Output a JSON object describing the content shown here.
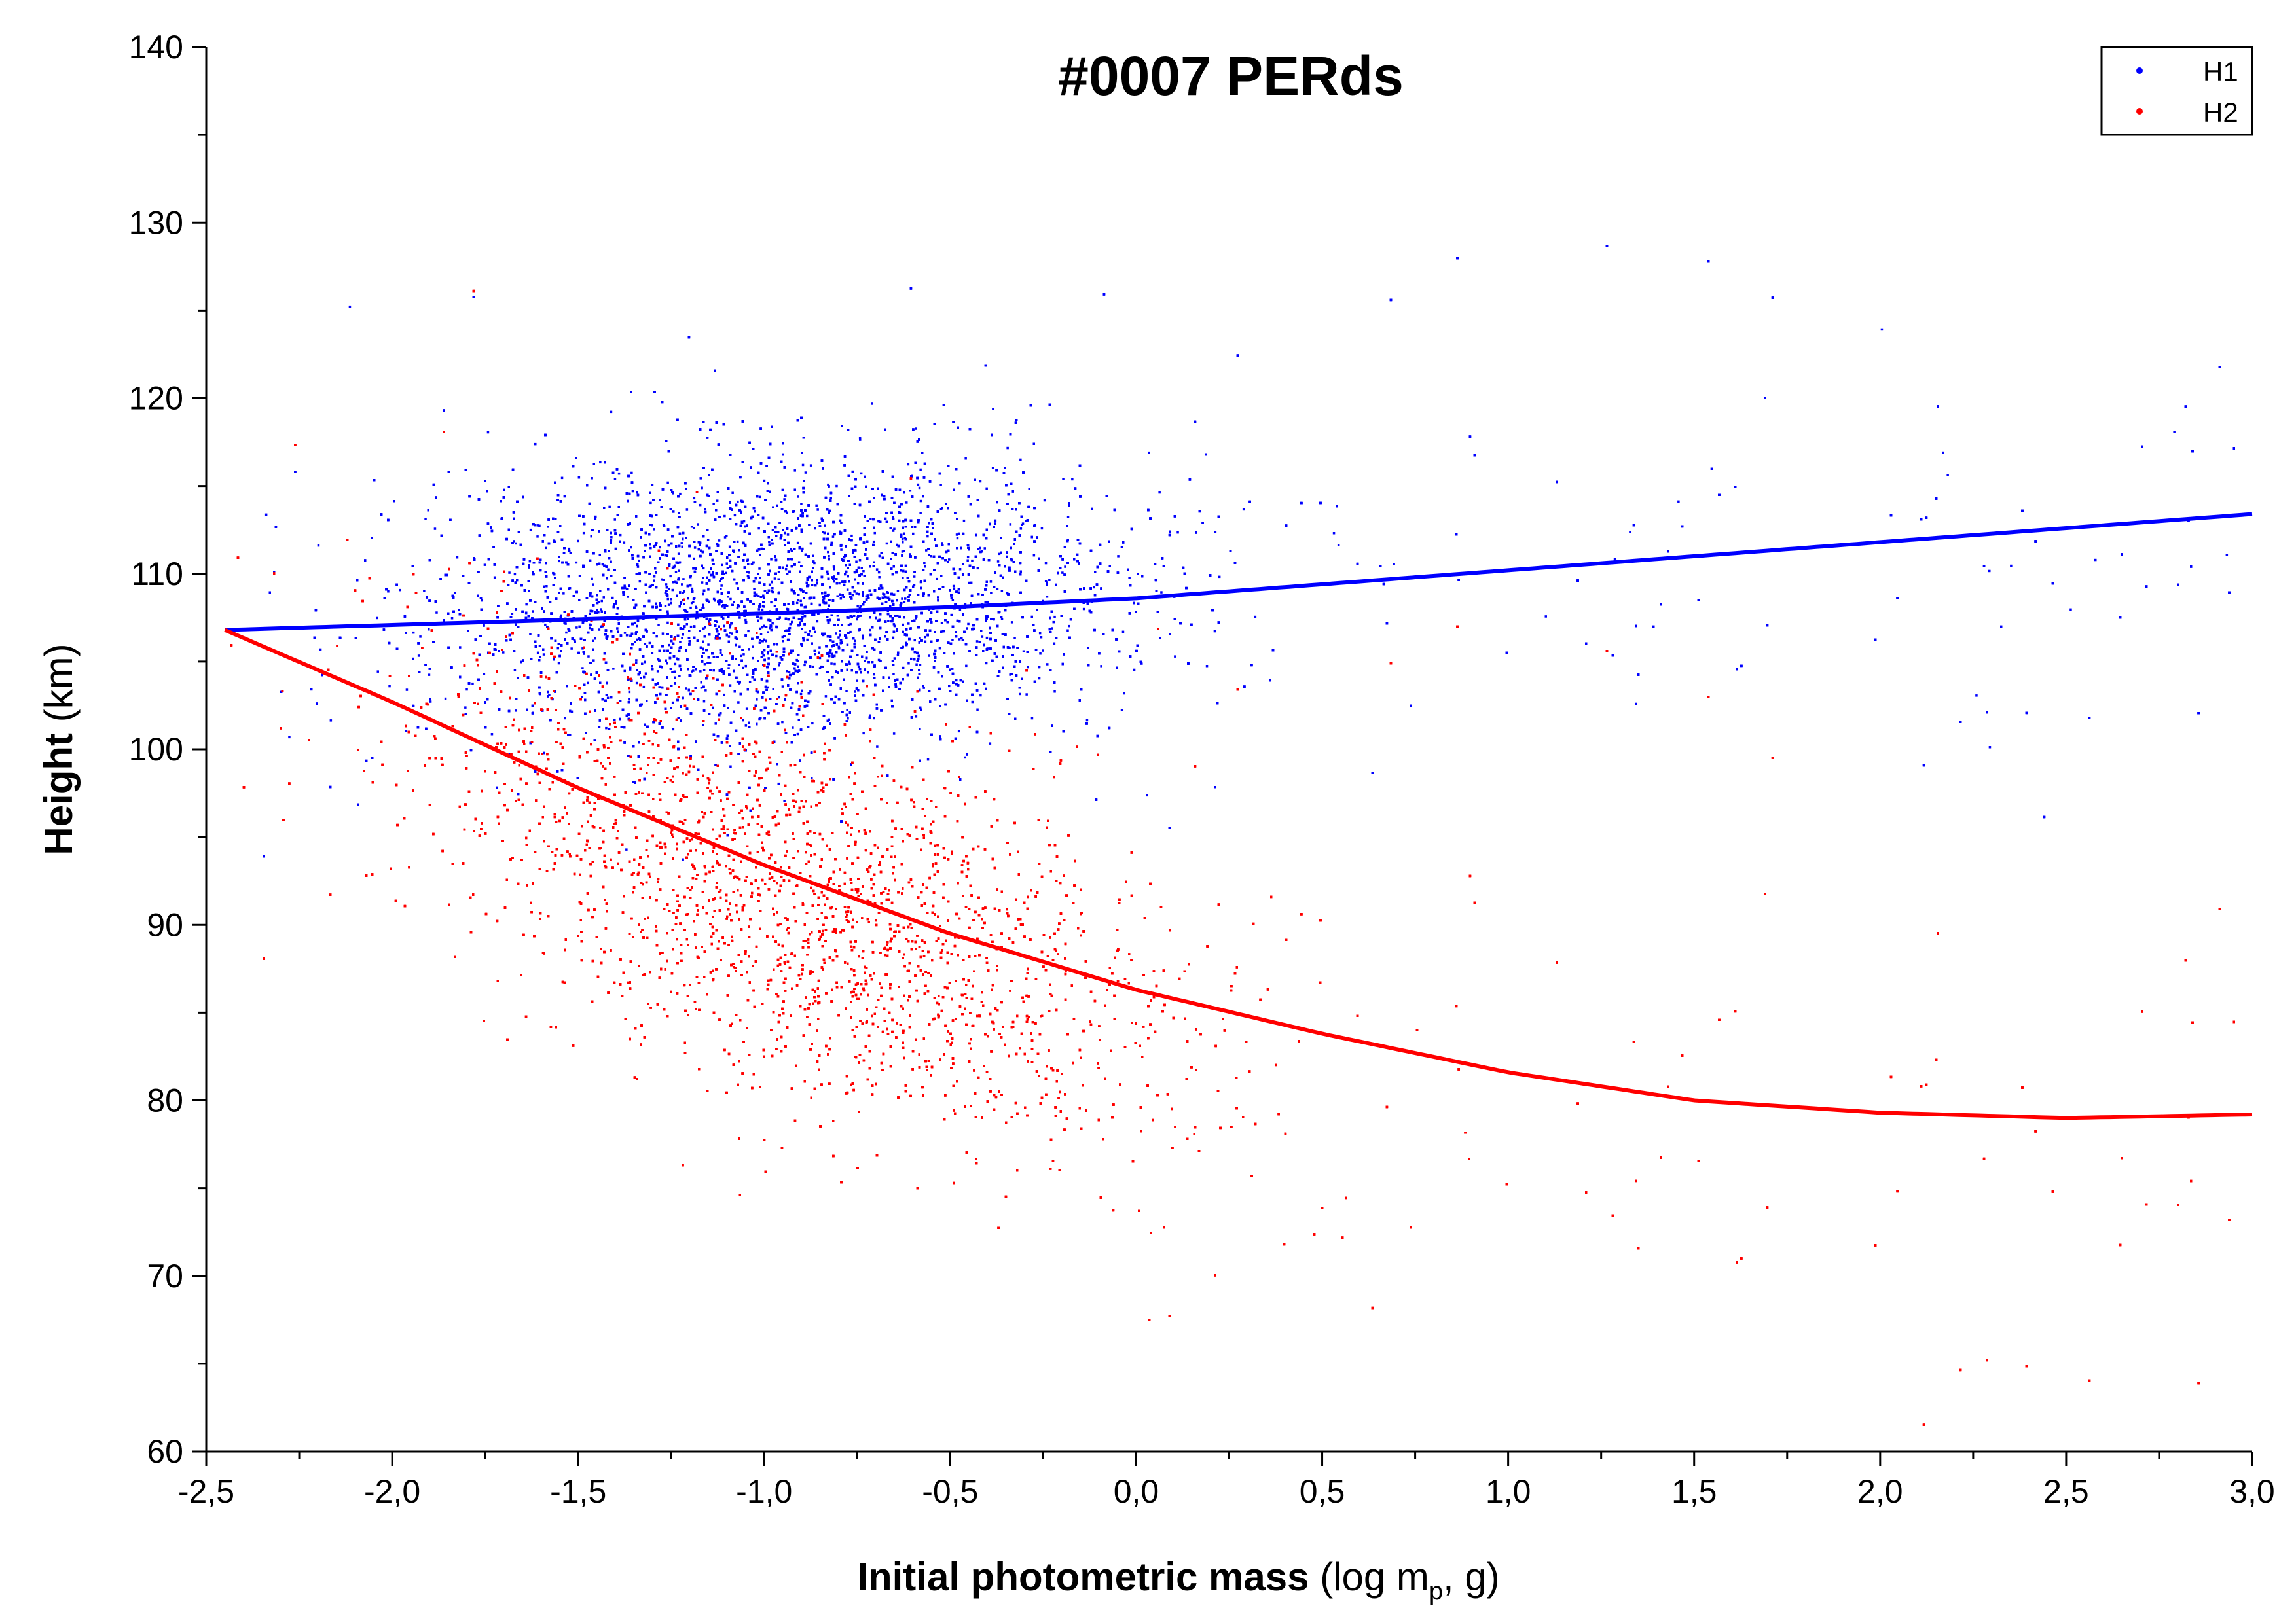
{
  "chart_data": {
    "type": "scatter",
    "title": "#0007 PERds",
    "xlabel_bold": "Initial photometric mass",
    "xlabel_rest_pre": "(log m",
    "xlabel_sub": "p",
    "xlabel_rest_post": ", g)",
    "ylabel_bold": "Height",
    "ylabel_rest": "(km)",
    "xlim": [
      -2.5,
      3.0
    ],
    "ylim": [
      60,
      140
    ],
    "xticks": [
      "-2,5",
      "-2,0",
      "-1,5",
      "-1,0",
      "-0,5",
      "0,0",
      "0,5",
      "1,0",
      "1,5",
      "2,0",
      "2,5",
      "3,0"
    ],
    "xtick_values": [
      -2.5,
      -2.0,
      -1.5,
      -1.0,
      -0.5,
      0.0,
      0.5,
      1.0,
      1.5,
      2.0,
      2.5,
      3.0
    ],
    "yticks": [
      "60",
      "70",
      "80",
      "90",
      "100",
      "110",
      "120",
      "130",
      "140"
    ],
    "ytick_values": [
      60,
      70,
      80,
      90,
      100,
      110,
      120,
      130,
      140
    ],
    "grid": false,
    "legend_position": "top-right",
    "series": [
      {
        "name": "H1",
        "color": "#0000ff",
        "cluster": {
          "x_center": -0.95,
          "y_center": 108.5,
          "x_spread": 0.45,
          "y_spread": 4.0
        },
        "fit_line": {
          "x": [
            -2.45,
            -1.5,
            -0.5,
            0.0,
            1.0,
            2.0,
            3.0
          ],
          "y": [
            106.8,
            107.4,
            108.1,
            108.6,
            110.2,
            111.8,
            113.4
          ]
        }
      },
      {
        "name": "H2",
        "color": "#ff0000",
        "cluster": {
          "x_center": -0.9,
          "y_center": 91.5,
          "x_spread": 0.5,
          "y_spread": 5.5
        },
        "fit_line": {
          "x": [
            -2.45,
            -2.0,
            -1.5,
            -1.0,
            -0.5,
            0.0,
            0.5,
            1.0,
            1.5,
            2.0,
            2.5,
            3.0
          ],
          "y": [
            106.8,
            102.7,
            97.8,
            93.4,
            89.5,
            86.3,
            83.8,
            81.6,
            80.0,
            79.3,
            79.0,
            79.2
          ]
        }
      }
    ]
  }
}
